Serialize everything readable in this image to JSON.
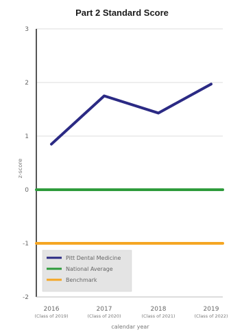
{
  "chart_data": {
    "type": "line",
    "title": "Part 2 Standard Score",
    "xlabel": "calendar year",
    "ylabel": "z-score",
    "ylim": [
      -2,
      3
    ],
    "yticks": [
      "-2",
      "-1",
      "0",
      "1",
      "2",
      "3"
    ],
    "categories": [
      "2016",
      "2017",
      "2018",
      "2019"
    ],
    "category_sublabels": [
      "(Class of 2019)",
      "(Class of 2020)",
      "(Class of 2021)",
      "(Class of 2022)"
    ],
    "grid": true,
    "legend_position": "bottom-left",
    "series": [
      {
        "name": "Pitt Dental Medicine",
        "values": [
          0.85,
          1.75,
          1.43,
          1.97
        ],
        "color": "#2b2a84"
      },
      {
        "name": "National Average",
        "values": [
          0,
          0,
          0,
          0
        ],
        "color": "#2e9b3c"
      },
      {
        "name": "Benchmark",
        "values": [
          -1,
          -1,
          -1,
          -1
        ],
        "color": "#f5a623"
      }
    ]
  }
}
